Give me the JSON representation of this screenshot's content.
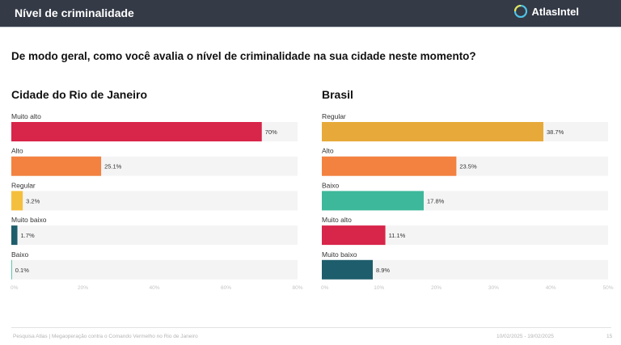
{
  "header": {
    "title": "Nível de criminalidade",
    "brand": "AtlasIntel",
    "brand_icon": "atlasintel-logo-icon"
  },
  "question": "De modo geral, como você avalia o nível de criminalidade na sua cidade neste momento?",
  "colors": {
    "muito_alto": "#d8254a",
    "alto": "#f3813f",
    "regular": "#e7aa3a",
    "regular_rio": "#f5bf3e",
    "baixo": "#3db89a",
    "muito_baixo": "#1e5d6b",
    "track": "#f4f4f4"
  },
  "chart_data": [
    {
      "type": "bar",
      "orientation": "horizontal",
      "title": "Cidade do Rio de Janeiro",
      "categories": [
        "Muito alto",
        "Alto",
        "Regular",
        "Muito baixo",
        "Baixo"
      ],
      "values": [
        70,
        25.1,
        3.2,
        1.7,
        0.1
      ],
      "value_labels": [
        "70%",
        "25.1%",
        "3.2%",
        "1.7%",
        "0.1%"
      ],
      "color_keys": [
        "muito_alto",
        "alto",
        "regular_rio",
        "muito_baixo",
        "baixo"
      ],
      "xlim": [
        0,
        80
      ],
      "xticks": [
        0,
        20,
        40,
        60,
        80
      ],
      "xtick_labels": [
        "0%",
        "20%",
        "40%",
        "60%",
        "80%"
      ],
      "xlabel": "",
      "ylabel": "",
      "grid": false
    },
    {
      "type": "bar",
      "orientation": "horizontal",
      "title": "Brasil",
      "categories": [
        "Regular",
        "Alto",
        "Baixo",
        "Muito alto",
        "Muito baixo"
      ],
      "values": [
        38.7,
        23.5,
        17.8,
        11.1,
        8.9
      ],
      "value_labels": [
        "38.7%",
        "23.5%",
        "17.8%",
        "11.1%",
        "8.9%"
      ],
      "color_keys": [
        "regular",
        "alto",
        "baixo",
        "muito_alto",
        "muito_baixo"
      ],
      "xlim": [
        0,
        50
      ],
      "xticks": [
        0,
        10,
        20,
        30,
        40,
        50
      ],
      "xtick_labels": [
        "0%",
        "10%",
        "20%",
        "30%",
        "40%",
        "50%"
      ],
      "xlabel": "",
      "ylabel": "",
      "grid": false
    }
  ],
  "footer": {
    "source": "Pesquisa Atlas | Megaoperação contra o Comando Vermelho no Rio de Janeiro",
    "date_range": "10/02/2025 - 19/02/2025",
    "page": "15"
  }
}
